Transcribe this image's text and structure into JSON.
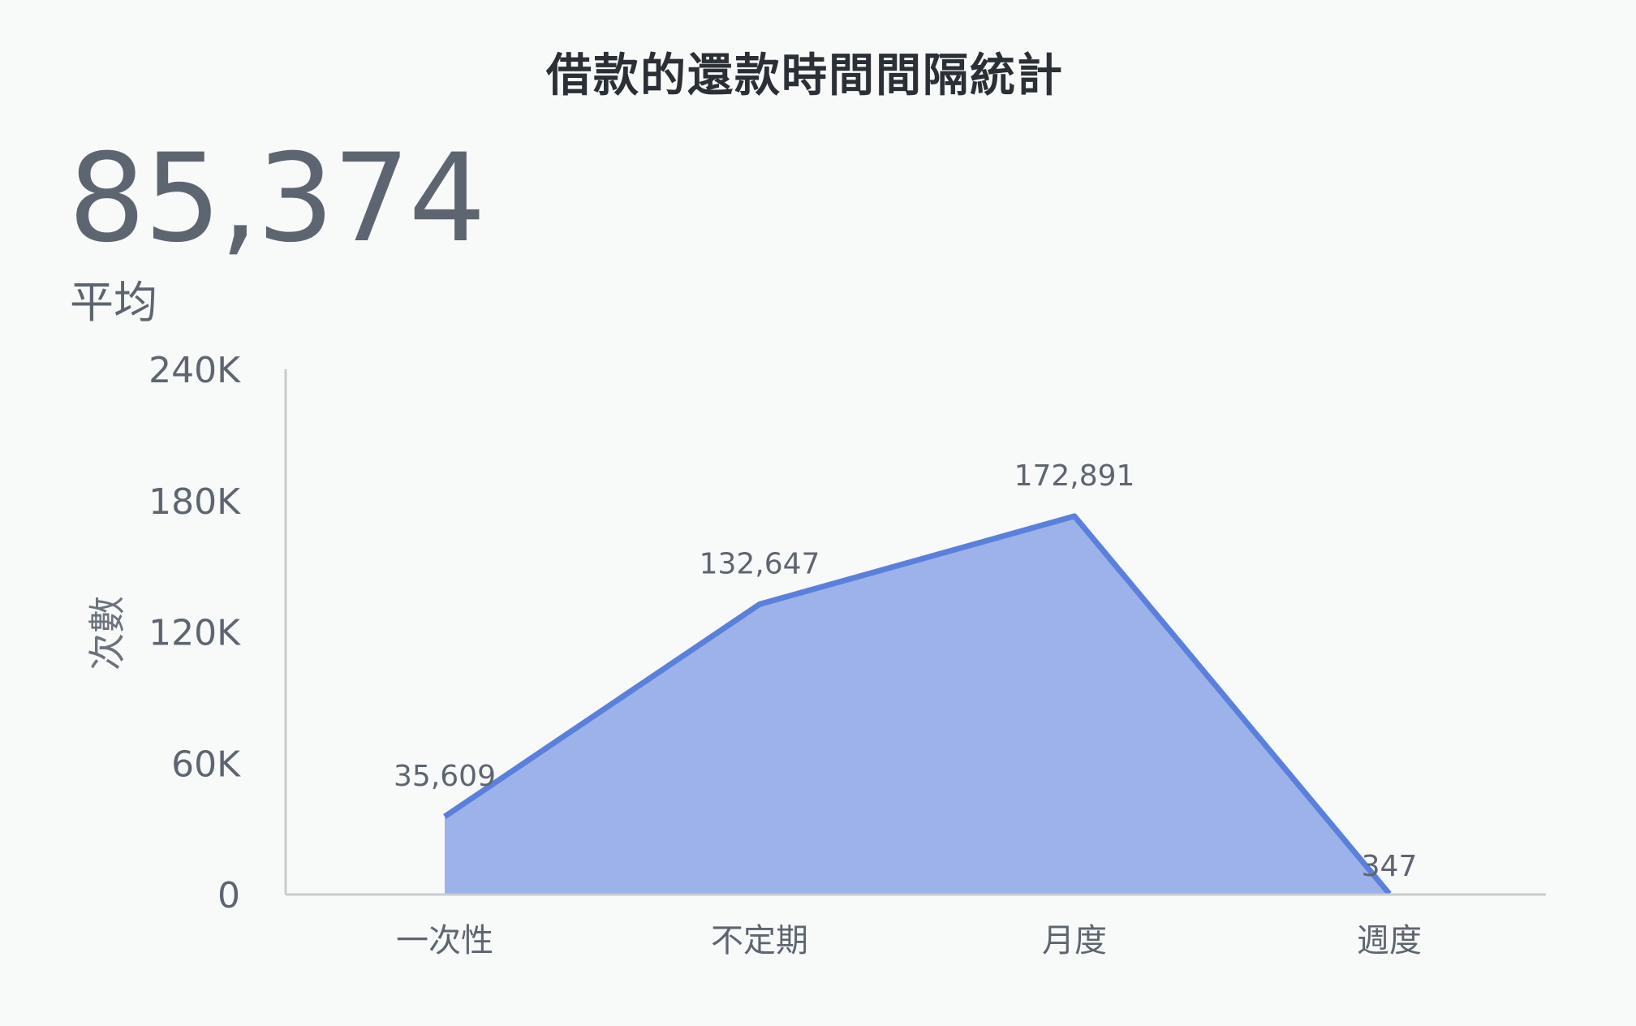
{
  "chart_data": {
    "type": "area",
    "title": "借款的還款時間間隔統計",
    "kpi": {
      "value": "85,374",
      "label": "平均"
    },
    "ylabel": "次數",
    "xlabel": "",
    "ylim": [
      0,
      240000
    ],
    "y_ticks": [
      {
        "value": 0,
        "label": "0"
      },
      {
        "value": 60000,
        "label": "60K"
      },
      {
        "value": 120000,
        "label": "120K"
      },
      {
        "value": 180000,
        "label": "180K"
      },
      {
        "value": 240000,
        "label": "240K"
      }
    ],
    "categories": [
      "一次性",
      "不定期",
      "月度",
      "週度"
    ],
    "values": [
      35609,
      132647,
      172891,
      347
    ],
    "value_labels": [
      "35,609",
      "132,647",
      "172,891",
      "347"
    ],
    "grid": false,
    "colors": {
      "fill": "#9cb2e8",
      "line": "#5a80dc",
      "axis": "#c9cccf"
    }
  }
}
